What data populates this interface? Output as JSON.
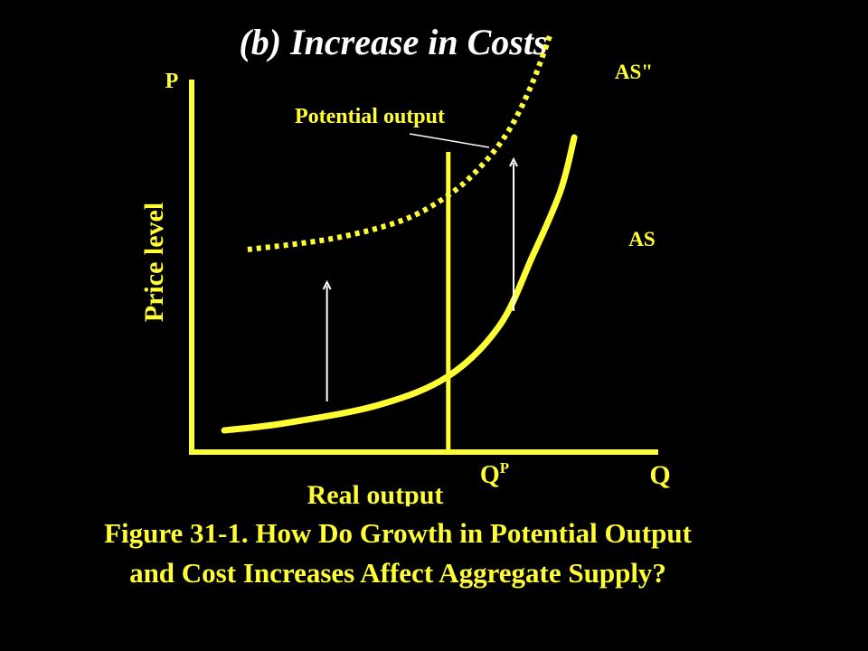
{
  "chart_data": {
    "type": "line",
    "title": "(b) Increase in Costs",
    "y_axis_letter": "P",
    "x_axis_letter": "Q",
    "ylabel": "Price level",
    "xlabel": "Real output",
    "potential_output_label": "Potential output",
    "potential_output_tick": "Q",
    "potential_output_tick_sup": "P",
    "series": [
      {
        "name": "AS",
        "line_style": "solid",
        "points": [
          [
            0.07,
            0.06
          ],
          [
            0.2,
            0.08
          ],
          [
            0.4,
            0.13
          ],
          [
            0.55,
            0.21
          ],
          [
            0.66,
            0.35
          ],
          [
            0.73,
            0.54
          ],
          [
            0.79,
            0.72
          ],
          [
            0.82,
            0.87
          ]
        ]
      },
      {
        "name": "AS\"",
        "line_style": "dotted",
        "points": [
          [
            0.12,
            0.56
          ],
          [
            0.3,
            0.59
          ],
          [
            0.45,
            0.64
          ],
          [
            0.55,
            0.71
          ],
          [
            0.62,
            0.79
          ],
          [
            0.68,
            0.89
          ],
          [
            0.73,
            1.02
          ],
          [
            0.77,
            1.16
          ]
        ]
      }
    ],
    "potential_output_x": 0.55,
    "shift_arrows": [
      {
        "x": 0.29,
        "from_y": 0.14,
        "to_y": 0.47
      },
      {
        "x": 0.69,
        "from_y": 0.39,
        "to_y": 0.81
      }
    ],
    "axis_color": "#ffff33",
    "curve_color": "#ffff33",
    "arrow_color": "#ffffff",
    "title_color": "#ffffff",
    "background": "#000000"
  },
  "caption": {
    "line1": "Figure 31-1. How Do Growth in Potential Output",
    "line2": "and Cost Increases Affect Aggregate Supply?"
  }
}
